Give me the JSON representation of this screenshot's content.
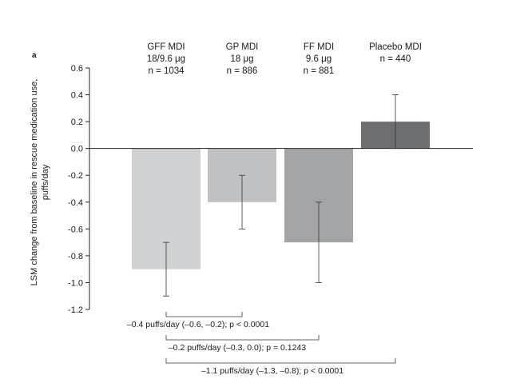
{
  "chart_data": {
    "type": "bar",
    "panel_label": "a",
    "ylabel_lines": [
      "LSM change from baseline in rescue medication use,",
      "puffs/day"
    ],
    "ylim": [
      -1.2,
      0.6
    ],
    "yticks": [
      "0.6",
      "0.4",
      "0.2",
      "0.0",
      "-0.2",
      "-0.4",
      "-0.6",
      "-0.8",
      "-1.0",
      "-1.2"
    ],
    "grid": false,
    "categories": [
      {
        "name": "GFF MDI",
        "dose": "18/9.6 μg",
        "n": "n = 1034"
      },
      {
        "name": "GP MDI",
        "dose": "18 μg",
        "n": "n = 886"
      },
      {
        "name": "FF MDI",
        "dose": "9.6 μg",
        "n": "n = 881"
      },
      {
        "name": "Placebo MDI",
        "dose": "",
        "n": "n = 440"
      }
    ],
    "values": [
      -0.9,
      -0.4,
      -0.7,
      0.2
    ],
    "error_bars": [
      {
        "low": -1.1,
        "high": -0.7
      },
      {
        "low": -0.6,
        "high": -0.2
      },
      {
        "low": -1.0,
        "high": -0.4
      },
      {
        "low": 0.0,
        "high": 0.4
      }
    ],
    "colors": [
      "#cfd1d2",
      "#bfc1c2",
      "#a2a4a5",
      "#6d6e70"
    ],
    "comparisons": [
      {
        "from": 0,
        "to": 1,
        "label": "–0.4 puffs/day (–0.6, –0.2); p < 0.0001"
      },
      {
        "from": 0,
        "to": 2,
        "label": "–0.2 puffs/day (–0.3, 0.0); p = 0.1243"
      },
      {
        "from": 0,
        "to": 3,
        "label": "–1.1 puffs/day (–1.3, –0.8); p < 0.0001"
      }
    ]
  }
}
